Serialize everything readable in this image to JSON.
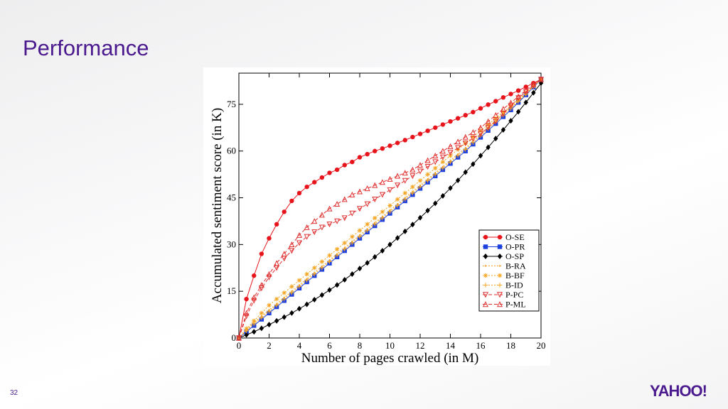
{
  "header": {
    "title": "Performance"
  },
  "chart_data": {
    "type": "line",
    "x_label": "Number of pages crawled (in M)",
    "y_label": "Accumulated sentiment score (in K)",
    "x": [
      0,
      0.5,
      1,
      1.5,
      2,
      2.5,
      3,
      3.5,
      4,
      4.5,
      5,
      5.5,
      6,
      6.5,
      7,
      7.5,
      8,
      8.5,
      9,
      9.5,
      10,
      10.5,
      11,
      11.5,
      12,
      12.5,
      13,
      13.5,
      14,
      14.5,
      15,
      15.5,
      16,
      16.5,
      17,
      17.5,
      18,
      18.5,
      19,
      19.5,
      20
    ],
    "xlim": [
      0,
      20
    ],
    "xticks": [
      0,
      2,
      4,
      6,
      8,
      10,
      12,
      14,
      16,
      18,
      20
    ],
    "ylim": [
      0,
      85
    ],
    "yticks": [
      0,
      15,
      30,
      45,
      60,
      75
    ],
    "legend": "lower-right",
    "series": [
      {
        "name": "O-SE",
        "color": "#e8141c",
        "marker": "circle",
        "dash": "solid",
        "values": [
          0,
          12.5,
          20,
          27,
          32,
          36.5,
          40.5,
          44,
          46.5,
          48.5,
          50,
          51.5,
          53,
          54,
          55.5,
          56.5,
          58,
          59,
          60,
          60.8,
          61.7,
          62.6,
          63.5,
          64.5,
          65.5,
          66.5,
          67.5,
          68.5,
          69.5,
          70.5,
          71.5,
          72.5,
          73.7,
          74.9,
          76,
          77.2,
          78.3,
          79.4,
          80.6,
          81.8,
          83
        ]
      },
      {
        "name": "O-PR",
        "color": "#1c3fe0",
        "marker": "square",
        "dash": "solid",
        "values": [
          0,
          2,
          4,
          6,
          8,
          10,
          12,
          14,
          16,
          18,
          20,
          22,
          24,
          26,
          28,
          30,
          32,
          34,
          36,
          38,
          40,
          42,
          44,
          46,
          48,
          50,
          52,
          54,
          56,
          58,
          60,
          62.2,
          64.4,
          66.6,
          68.8,
          71,
          73.2,
          75.6,
          78,
          80.5,
          83
        ]
      },
      {
        "name": "O-SP",
        "color": "#000000",
        "marker": "diamond",
        "dash": "solid",
        "values": [
          0,
          1,
          2,
          3.1,
          4.3,
          5.5,
          6.7,
          8,
          9.4,
          10.8,
          12.3,
          13.8,
          15.4,
          17,
          18.7,
          20.5,
          22.3,
          24.1,
          26,
          28,
          30,
          32.1,
          34.2,
          36.4,
          38.6,
          40.9,
          43.2,
          45.6,
          48.1,
          50.6,
          53.2,
          55.8,
          58.5,
          61.2,
          64,
          66.8,
          69.7,
          72.6,
          75.6,
          78.7,
          81.8
        ]
      },
      {
        "name": "B-RA",
        "color": "#f5a623",
        "marker": "dot",
        "dash": "dotted",
        "values": [
          0,
          2.5,
          5,
          7,
          9,
          11,
          13,
          15,
          17,
          19,
          21,
          23,
          25,
          27,
          29,
          31,
          33,
          35,
          37,
          39,
          41,
          43,
          45,
          47,
          49,
          51,
          53,
          55,
          57,
          59,
          61,
          63.2,
          65.4,
          67.6,
          69.8,
          72,
          74,
          76.2,
          78.4,
          80.7,
          83
        ]
      },
      {
        "name": "B-BF",
        "color": "#f5a623",
        "marker": "star",
        "dash": "dotted",
        "values": [
          0,
          3,
          5.5,
          8,
          10.5,
          12.5,
          14.5,
          16.5,
          18.5,
          20.5,
          22.5,
          24.5,
          26.5,
          28.5,
          30.5,
          32.5,
          34.5,
          36.5,
          38.5,
          40.5,
          42.5,
          44.5,
          46.5,
          48.5,
          50.5,
          52.5,
          54.5,
          56.5,
          58.5,
          60.5,
          62.5,
          64.5,
          66.5,
          68.5,
          70.5,
          72.5,
          74.5,
          76.5,
          78.7,
          80.8,
          83
        ]
      },
      {
        "name": "B-ID",
        "color": "#f5a623",
        "marker": "plus",
        "dash": "dotted",
        "values": [
          0,
          2.3,
          4.5,
          6.5,
          8.5,
          10.5,
          12.5,
          14.5,
          16.5,
          18.5,
          20.5,
          22.5,
          24.5,
          26.5,
          28.5,
          30.5,
          32.5,
          34.5,
          36.5,
          38.5,
          40.5,
          42.5,
          44.5,
          46.5,
          48.5,
          50.5,
          52.5,
          54.5,
          56.5,
          58.5,
          60.5,
          62.7,
          64.9,
          67.1,
          69.3,
          71.5,
          73.6,
          75.9,
          78.2,
          80.6,
          83
        ]
      },
      {
        "name": "P-PC",
        "color": "#e03030",
        "marker": "triangle-down",
        "dash": "dashed",
        "values": [
          0,
          7,
          12,
          16,
          19.5,
          22.5,
          25.5,
          28,
          30.5,
          32.5,
          34,
          35.5,
          36.5,
          37.5,
          38.5,
          40,
          41.5,
          43,
          44.5,
          46,
          47.5,
          49,
          50.5,
          52,
          53.5,
          55,
          56.5,
          58,
          59.5,
          61,
          62.5,
          64,
          65.5,
          67.5,
          69.5,
          72,
          74.5,
          77,
          79,
          81,
          83
        ]
      },
      {
        "name": "P-ML",
        "color": "#e03030",
        "marker": "triangle-up",
        "dash": "dashed",
        "values": [
          0,
          8,
          13,
          17,
          20.5,
          24,
          27,
          30,
          33,
          35.5,
          37.5,
          39.5,
          41.5,
          43,
          44.5,
          46,
          47,
          48,
          49,
          50,
          51,
          52,
          53,
          54,
          55.5,
          57,
          58.5,
          60,
          61.5,
          63,
          64.5,
          66,
          67.5,
          69.5,
          71.5,
          73.5,
          75.5,
          77.5,
          79.5,
          81.5,
          83
        ]
      }
    ]
  },
  "footer": {
    "page_number": "32",
    "logo": "YAHOO!"
  }
}
